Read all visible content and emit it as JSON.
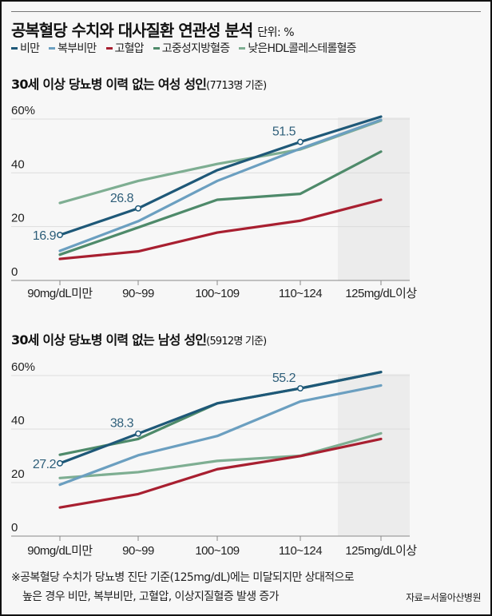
{
  "header": {
    "title": "공복혈당 수치와 대사질환 연관성 분석",
    "unit": "단위: %"
  },
  "colors": {
    "비만": "#1e5878",
    "복부비만": "#6b9fc0",
    "고혈압": "#a81f30",
    "고중성지방혈증": "#4e8a6a",
    "낮은HDL콜레스테롤혈증": "#7eae92"
  },
  "legend": [
    "비만",
    "복부비만",
    "고혈압",
    "고중성지방혈증",
    "낮은HDL콜레스테롤혈증"
  ],
  "chart_data": [
    {
      "type": "line",
      "title": "30세 이상 당뇨병 이력 없는 여성 성인",
      "note": "(7713명 기준)",
      "categories": [
        "90mg/dL미만",
        "90~99",
        "100~109",
        "110~124",
        "125mg/dL이상"
      ],
      "yticks": [
        "0",
        "20",
        "40",
        "60%"
      ],
      "ylim": [
        0,
        60
      ],
      "grid": true,
      "highlight_category": "125mg/dL이상",
      "series": [
        {
          "name": "낮은HDL콜레스테롤혈증",
          "values": [
            28.8,
            37,
            43.3,
            48.7,
            59.4
          ]
        },
        {
          "name": "고중성지방혈증",
          "values": [
            9.6,
            19.7,
            30,
            32.2,
            47.9
          ]
        },
        {
          "name": "고혈압",
          "values": [
            8,
            10.8,
            17.8,
            22.2,
            30
          ]
        },
        {
          "name": "복부비만",
          "values": [
            11,
            22,
            37,
            49,
            59.7
          ]
        },
        {
          "name": "비만",
          "values": [
            16.9,
            26.8,
            41,
            51.5,
            60.9
          ]
        }
      ],
      "labels": [
        {
          "series": "비만",
          "index": 0,
          "text": "16.9"
        },
        {
          "series": "비만",
          "index": 1,
          "text": "26.8"
        },
        {
          "series": "비만",
          "index": 3,
          "text": "51.5"
        }
      ]
    },
    {
      "type": "line",
      "title": "30세 이상 당뇨병 이력 없는 남성 성인",
      "note": "(5912명 기준)",
      "categories": [
        "90mg/dL미만",
        "90~99",
        "100~109",
        "110~124",
        "125mg/dL이상"
      ],
      "yticks": [
        "0",
        "20",
        "40",
        "60%"
      ],
      "ylim": [
        0,
        60
      ],
      "grid": true,
      "highlight_category": "125mg/dL이상",
      "series": [
        {
          "name": "낮은HDL콜레스테롤혈증",
          "values": [
            21.7,
            23.9,
            28.1,
            30,
            38.4
          ]
        },
        {
          "name": "고혈압",
          "values": [
            10.7,
            15.7,
            25,
            29.9,
            36.3
          ]
        },
        {
          "name": "복부비만",
          "values": [
            19.2,
            30.2,
            37.4,
            50.3,
            56.3
          ]
        },
        {
          "name": "고중성지방혈증",
          "values": [
            30.4,
            36.3,
            49.6,
            55.2,
            61.3
          ]
        },
        {
          "name": "비만",
          "values": [
            27.2,
            38.3,
            49.6,
            55.2,
            61.3
          ]
        }
      ],
      "labels": [
        {
          "series": "비만",
          "index": 0,
          "text": "27.2"
        },
        {
          "series": "비만",
          "index": 1,
          "text": "38.3"
        },
        {
          "series": "비만",
          "index": 3,
          "text": "55.2"
        }
      ]
    }
  ],
  "footnote": {
    "line1": "※공복혈당 수치가 당뇨병 진단 기준(125mg/dL)에는 미달되지만 상대적으로",
    "line2": "높은 경우 비만, 복부비만, 고혈압, 이상지질혈증 발생 증가",
    "source": "자료=서울아산병원"
  }
}
